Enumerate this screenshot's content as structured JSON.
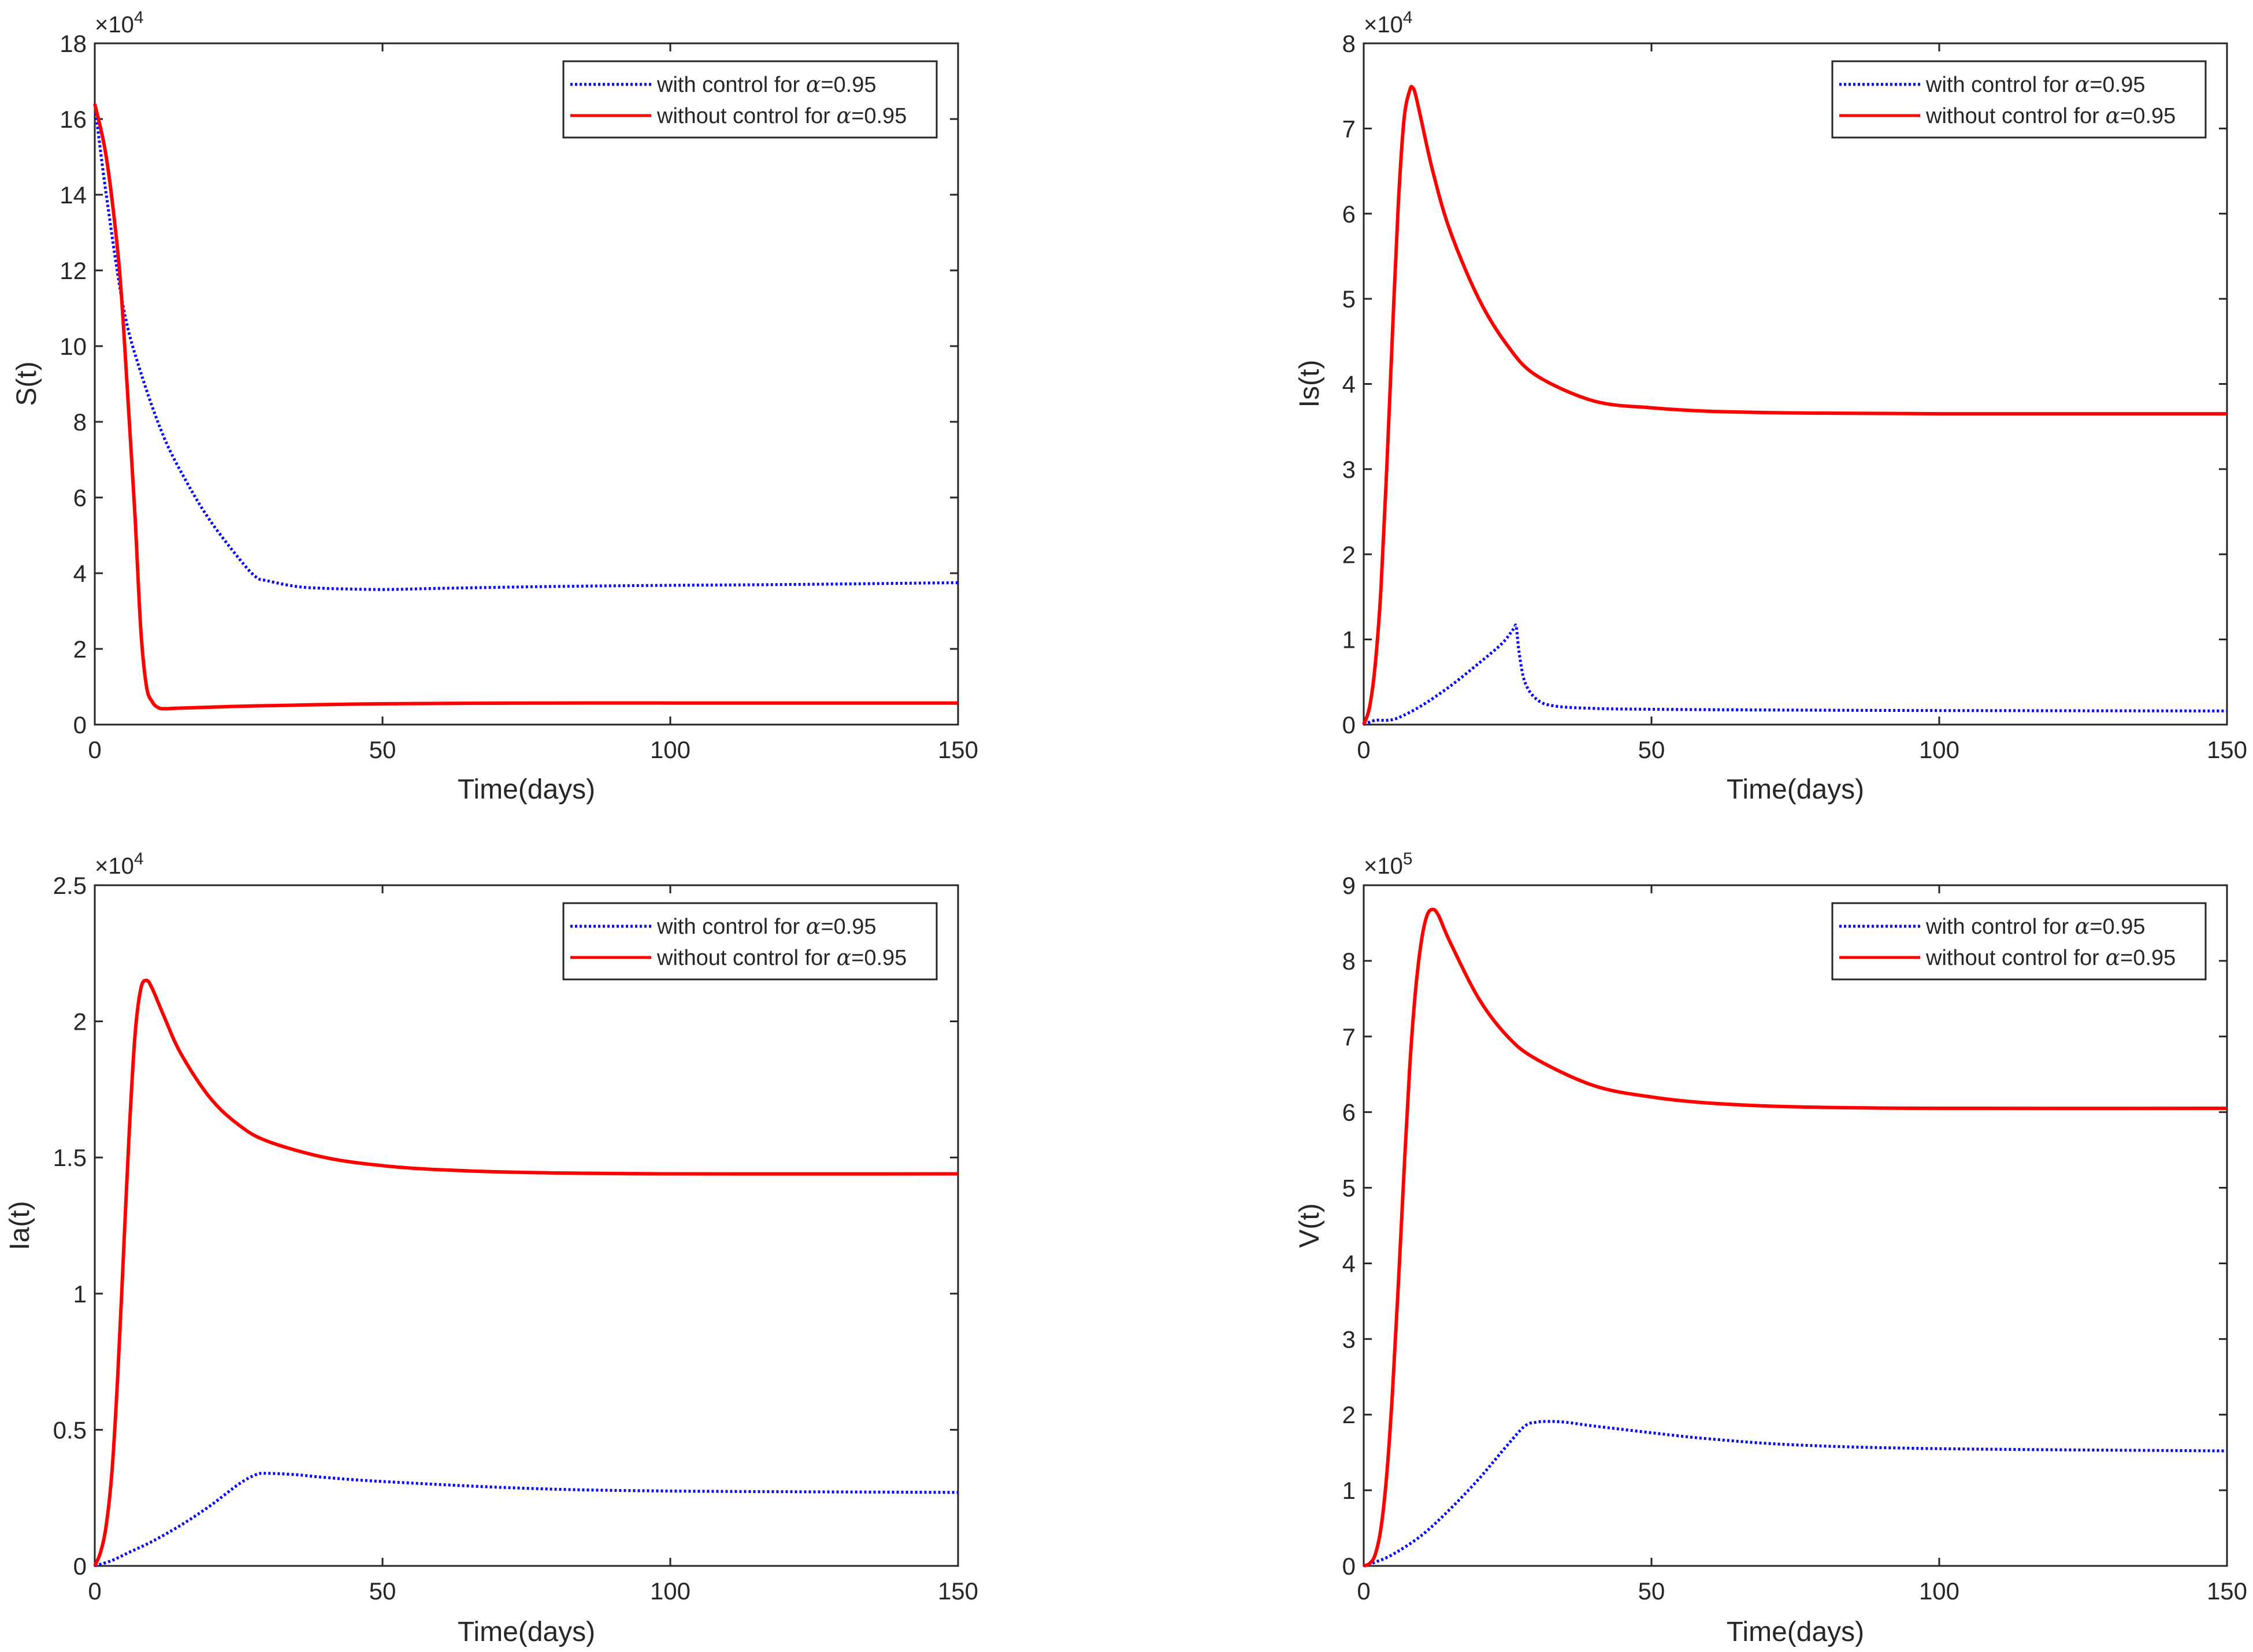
{
  "figure": {
    "series_style": {
      "with_control": {
        "color": "#0000ff",
        "dash": "dotted"
      },
      "without_control": {
        "color": "#ff0000",
        "dash": "solid"
      }
    },
    "legend": {
      "entries": [
        {
          "key": "with_control",
          "label_prefix": "with control for ",
          "symbol": "α",
          "label_suffix": "=0.95"
        },
        {
          "key": "without_control",
          "label_prefix": "without control for ",
          "symbol": "α",
          "label_suffix": "=0.95"
        }
      ],
      "location": "top-right"
    }
  },
  "chart_data": [
    {
      "id": "S",
      "type": "line",
      "ylabel": "S(t)",
      "xlabel": "Time(days)",
      "xlim": [
        0,
        150
      ],
      "xticks": [
        0,
        50,
        100,
        150
      ],
      "ylim": [
        0,
        18
      ],
      "yticks": [
        0,
        2,
        4,
        6,
        8,
        10,
        12,
        14,
        16,
        18
      ],
      "ytick_labels": [
        "0",
        "2",
        "4",
        "6",
        "8",
        "10",
        "12",
        "14",
        "16",
        "18"
      ],
      "exponent_base": "×10",
      "exponent_power": "4",
      "series": [
        {
          "key": "with_control",
          "name": "with control for α=0.95",
          "x": [
            0,
            2,
            5,
            8,
            12,
            16,
            20,
            25,
            28,
            30,
            35,
            40,
            50,
            60,
            80,
            100,
            120,
            150
          ],
          "y": [
            16.4,
            14.0,
            11.0,
            9.3,
            7.6,
            6.4,
            5.4,
            4.4,
            3.9,
            3.8,
            3.65,
            3.6,
            3.57,
            3.6,
            3.65,
            3.68,
            3.7,
            3.75
          ]
        },
        {
          "key": "without_control",
          "name": "without control for α=0.95",
          "x": [
            0,
            2,
            4,
            5,
            6,
            7,
            8,
            9,
            10,
            11,
            12,
            14,
            20,
            30,
            50,
            80,
            100,
            150
          ],
          "y": [
            16.4,
            15.0,
            12.5,
            10.5,
            8.0,
            5.5,
            2.5,
            1.0,
            0.6,
            0.45,
            0.42,
            0.43,
            0.46,
            0.5,
            0.55,
            0.57,
            0.57,
            0.57
          ]
        }
      ]
    },
    {
      "id": "Is",
      "type": "line",
      "ylabel": "Is(t)",
      "xlabel": "Time(days)",
      "xlim": [
        0,
        150
      ],
      "xticks": [
        0,
        50,
        100,
        150
      ],
      "ylim": [
        0,
        8
      ],
      "yticks": [
        0,
        1,
        2,
        3,
        4,
        5,
        6,
        7,
        8
      ],
      "ytick_labels": [
        "0",
        "1",
        "2",
        "3",
        "4",
        "5",
        "6",
        "7",
        "8"
      ],
      "exponent_base": "×10",
      "exponent_power": "4",
      "series": [
        {
          "key": "with_control",
          "name": "with control for α=0.95",
          "x": [
            0,
            2,
            4,
            6,
            10,
            15,
            20,
            24,
            26,
            26.5,
            27,
            28,
            30,
            33,
            40,
            50,
            75,
            100,
            150
          ],
          "y": [
            0.0,
            0.05,
            0.05,
            0.08,
            0.22,
            0.45,
            0.72,
            0.95,
            1.12,
            1.15,
            0.85,
            0.5,
            0.3,
            0.22,
            0.19,
            0.18,
            0.17,
            0.165,
            0.16
          ]
        },
        {
          "key": "without_control",
          "name": "without control for α=0.95",
          "x": [
            0,
            1,
            2,
            3,
            4,
            5,
            6,
            7,
            8,
            8.5,
            9,
            10,
            12,
            15,
            20,
            25,
            30,
            40,
            50,
            60,
            75,
            100,
            150
          ],
          "y": [
            0.0,
            0.2,
            0.7,
            1.6,
            3.0,
            4.6,
            6.1,
            7.1,
            7.45,
            7.48,
            7.4,
            7.1,
            6.5,
            5.8,
            5.0,
            4.45,
            4.1,
            3.8,
            3.72,
            3.68,
            3.66,
            3.65,
            3.65
          ]
        }
      ]
    },
    {
      "id": "Ia",
      "type": "line",
      "ylabel": "Ia(t)",
      "xlabel": "Time(days)",
      "xlim": [
        0,
        150
      ],
      "xticks": [
        0,
        50,
        100,
        150
      ],
      "ylim": [
        0,
        2.5
      ],
      "yticks": [
        0,
        0.5,
        1,
        1.5,
        2,
        2.5
      ],
      "ytick_labels": [
        "0",
        "0.5",
        "1",
        "1.5",
        "2",
        "2.5"
      ],
      "exponent_base": "×10",
      "exponent_power": "4",
      "series": [
        {
          "key": "with_control",
          "name": "with control for α=0.95",
          "x": [
            0,
            3,
            6,
            10,
            15,
            20,
            25,
            28,
            30,
            35,
            40,
            50,
            75,
            100,
            150
          ],
          "y": [
            0.0,
            0.02,
            0.05,
            0.09,
            0.15,
            0.22,
            0.3,
            0.335,
            0.34,
            0.335,
            0.325,
            0.31,
            0.285,
            0.275,
            0.27
          ]
        },
        {
          "key": "without_control",
          "name": "without control for α=0.95",
          "x": [
            0,
            1,
            2,
            3,
            4,
            5,
            6,
            7,
            8,
            9,
            10,
            12,
            15,
            20,
            25,
            30,
            40,
            50,
            60,
            75,
            100,
            150
          ],
          "y": [
            0.0,
            0.05,
            0.15,
            0.35,
            0.7,
            1.15,
            1.6,
            1.95,
            2.12,
            2.15,
            2.12,
            2.02,
            1.88,
            1.72,
            1.62,
            1.56,
            1.5,
            1.47,
            1.455,
            1.445,
            1.44,
            1.44
          ]
        }
      ]
    },
    {
      "id": "V",
      "type": "line",
      "ylabel": "V(t)",
      "xlabel": "Time(days)",
      "xlim": [
        0,
        150
      ],
      "xticks": [
        0,
        50,
        100,
        150
      ],
      "ylim": [
        0,
        9
      ],
      "yticks": [
        0,
        1,
        2,
        3,
        4,
        5,
        6,
        7,
        8,
        9
      ],
      "ytick_labels": [
        "0",
        "1",
        "2",
        "3",
        "4",
        "5",
        "6",
        "7",
        "8",
        "9"
      ],
      "exponent_base": "×10",
      "exponent_power": "5",
      "series": [
        {
          "key": "with_control",
          "name": "with control for α=0.95",
          "x": [
            0,
            2,
            5,
            10,
            15,
            20,
            25,
            28,
            30,
            32,
            35,
            40,
            50,
            60,
            75,
            100,
            150
          ],
          "y": [
            0.0,
            0.05,
            0.15,
            0.4,
            0.75,
            1.15,
            1.6,
            1.85,
            1.9,
            1.91,
            1.9,
            1.85,
            1.76,
            1.68,
            1.6,
            1.55,
            1.52
          ]
        },
        {
          "key": "without_control",
          "name": "without control for α=0.95",
          "x": [
            0,
            1,
            2,
            3,
            4,
            5,
            6,
            7,
            8,
            9,
            10,
            11,
            12,
            13,
            15,
            20,
            25,
            30,
            40,
            50,
            60,
            75,
            100,
            150
          ],
          "y": [
            0.0,
            0.03,
            0.15,
            0.5,
            1.2,
            2.3,
            3.7,
            5.2,
            6.6,
            7.6,
            8.25,
            8.6,
            8.68,
            8.6,
            8.25,
            7.5,
            7.0,
            6.7,
            6.35,
            6.2,
            6.12,
            6.07,
            6.05,
            6.05
          ]
        }
      ]
    }
  ]
}
